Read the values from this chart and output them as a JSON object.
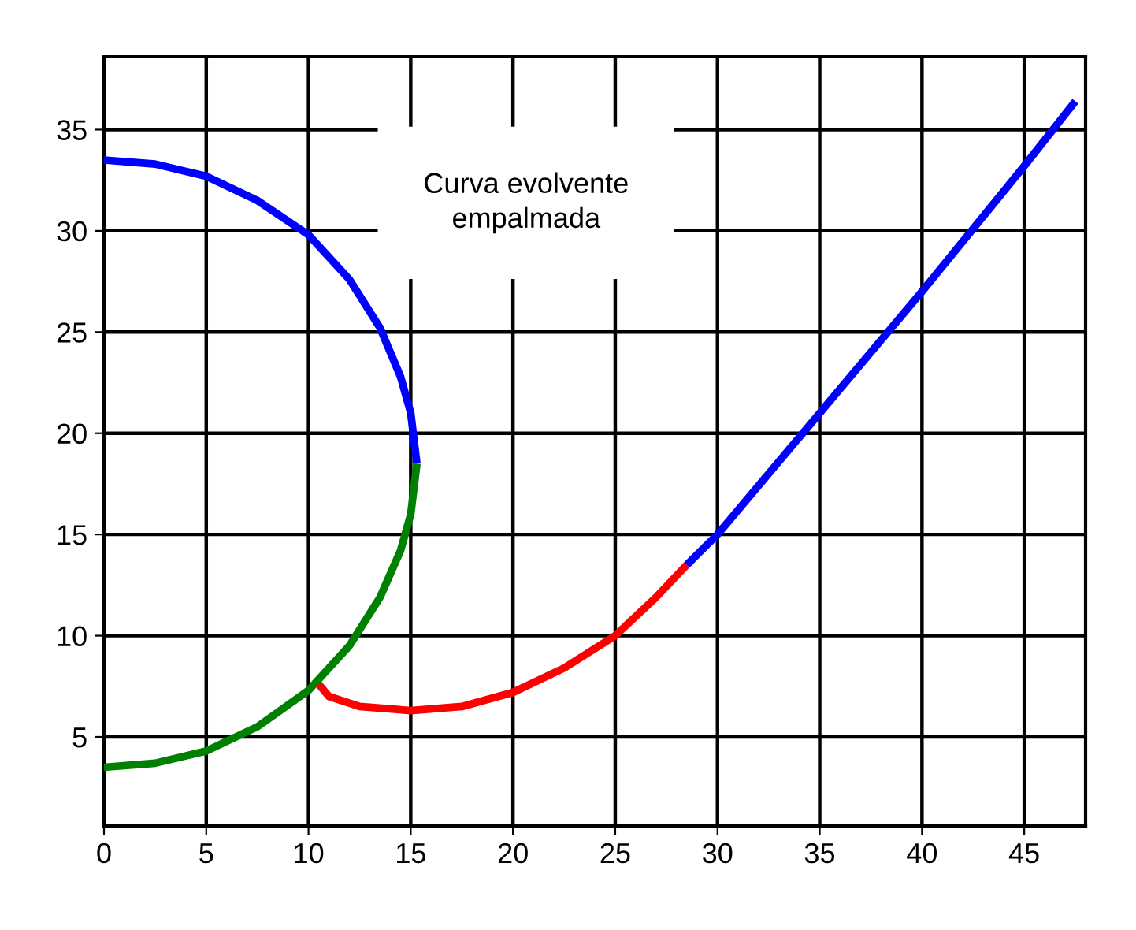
{
  "chart_data": {
    "type": "line",
    "annotations": [
      "Curva evolvente\nempalmada"
    ],
    "xlim": [
      0,
      48
    ],
    "ylim": [
      0.6,
      38.6
    ],
    "xticks": [
      0,
      5,
      10,
      15,
      20,
      25,
      30,
      35,
      40,
      45
    ],
    "yticks": [
      5,
      10,
      15,
      20,
      25,
      30,
      35
    ],
    "grid": true,
    "line_style": "solid",
    "series": [
      {
        "color": "#0000ff",
        "x": [
          0,
          2.5,
          5,
          7.5,
          10,
          12,
          13.5,
          14.5,
          15,
          15.3
        ],
        "values": [
          33.5,
          33.3,
          32.7,
          31.5,
          29.8,
          27.6,
          25.2,
          22.8,
          21,
          18.5
        ]
      },
      {
        "color": "#008000",
        "x": [
          0,
          2.5,
          5,
          7.5,
          10,
          12,
          13.5,
          14.5,
          15,
          15.3
        ],
        "values": [
          3.5,
          3.7,
          4.3,
          5.5,
          7.3,
          9.5,
          11.9,
          14.2,
          16,
          18.5
        ]
      },
      {
        "color": "#ff0000",
        "x": [
          10.5,
          11,
          12.5,
          15,
          17.5,
          20,
          22.5,
          25,
          27,
          28.5
        ],
        "values": [
          7.6,
          7,
          6.5,
          6.3,
          6.5,
          7.2,
          8.4,
          10,
          11.9,
          13.5
        ]
      },
      {
        "color": "#0000ff",
        "x": [
          28.5,
          30,
          35,
          40,
          45,
          47.5
        ],
        "values": [
          13.5,
          15,
          21,
          27,
          33.2,
          36.4
        ]
      }
    ]
  }
}
